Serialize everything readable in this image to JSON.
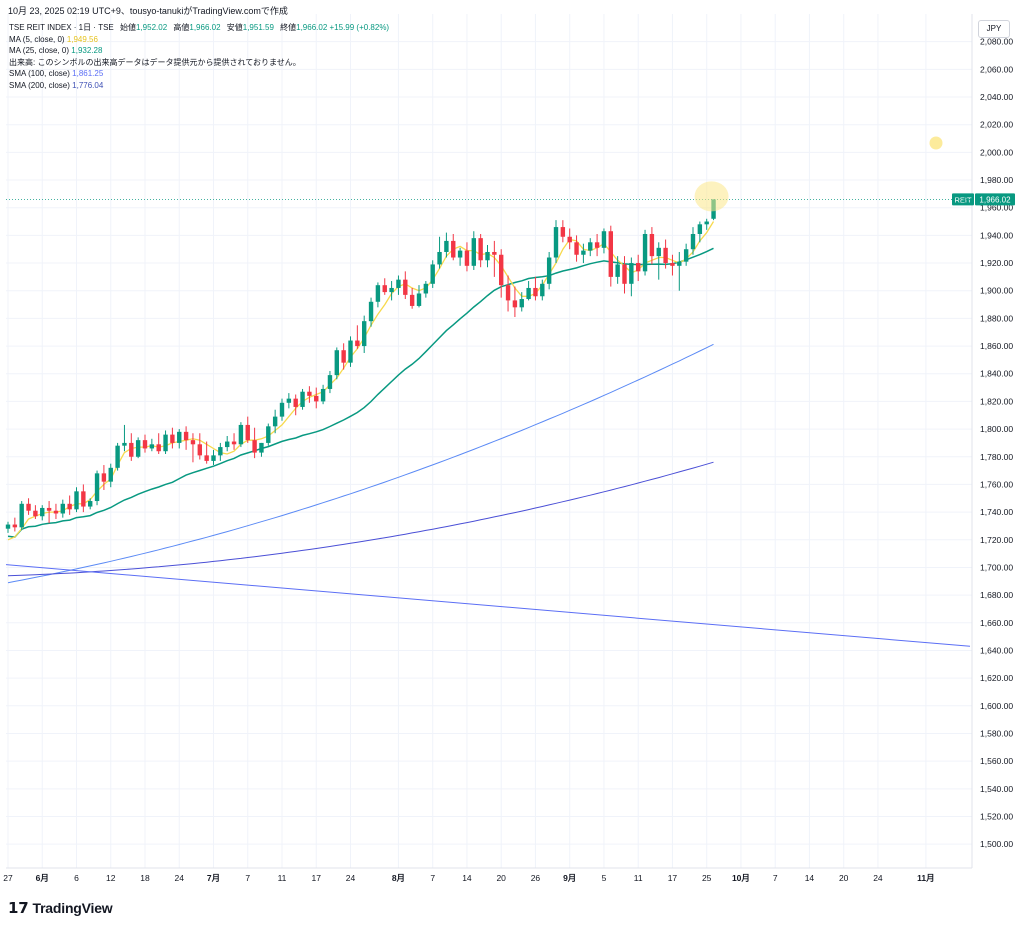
{
  "header": {
    "text": "10月 23, 2025 02:19 UTC+9、tousyo-tanukiがTradingView.comで作成"
  },
  "legend": {
    "symbol": "TSE REIT INDEX · 1日 · TSE",
    "ohlc": {
      "open_label": "始値",
      "open": "1,952.02",
      "high_label": "高値",
      "high": "1,966.02",
      "low_label": "安値",
      "low": "1,951.59",
      "close_label": "終値",
      "close": "1,966.02",
      "change": "+15.99 (+0.82%)"
    },
    "indicators": [
      {
        "label": "MA (5, close, 0)",
        "value": "1,949.56",
        "color": "#f7d94c"
      },
      {
        "label": "MA (25, close, 0)",
        "value": "1,932.28",
        "color": "#089981"
      },
      {
        "label": "出来高: このシンボルの出来高データはデータ提供元から提供されておりません。",
        "value": "",
        "color": "#131722"
      },
      {
        "label": "SMA (100, close)",
        "value": "1,861.25",
        "color": "#5b6ef5"
      },
      {
        "label": "SMA (200, close)",
        "value": "1,776.04",
        "color": "#3f51b5"
      }
    ]
  },
  "currency_button": "JPY",
  "price_tag": {
    "symbol": "REIT",
    "value": "1,966.02",
    "color": "#089981"
  },
  "brand": {
    "name": "TradingView",
    "mark": "17"
  },
  "colors": {
    "up": "#089981",
    "down": "#f23645",
    "ma5": "#f7d94c",
    "ma25": "#089981",
    "sma100": "#5b8af5",
    "sma200": "#4a4fd6",
    "trend": "#5b6ef5",
    "highlight": "#fbe88a"
  },
  "chart_data": {
    "type": "candlestick",
    "y_axis": {
      "min": 1490,
      "max": 2100,
      "ticks": [
        "2,080.00",
        "2,060.00",
        "2,040.00",
        "2,020.00",
        "2,000.00",
        "1,980.00",
        "1,960.00",
        "1,940.00",
        "1,920.00",
        "1,900.00",
        "1,880.00",
        "1,860.00",
        "1,840.00",
        "1,820.00",
        "1,800.00",
        "1,780.00",
        "1,760.00",
        "1,740.00",
        "1,720.00",
        "1,700.00",
        "1,680.00",
        "1,660.00",
        "1,640.00",
        "1,620.00",
        "1,600.00",
        "1,580.00",
        "1,560.00",
        "1,540.00",
        "1,520.00",
        "1,500.00"
      ]
    },
    "x_axis": {
      "ticks": [
        {
          "label": "27",
          "bar": 0
        },
        {
          "label": "6月",
          "bar": 5
        },
        {
          "label": "6",
          "bar": 10
        },
        {
          "label": "12",
          "bar": 15
        },
        {
          "label": "18",
          "bar": 20
        },
        {
          "label": "24",
          "bar": 25
        },
        {
          "label": "7月",
          "bar": 30
        },
        {
          "label": "7",
          "bar": 35
        },
        {
          "label": "11",
          "bar": 40
        },
        {
          "label": "17",
          "bar": 45
        },
        {
          "label": "24",
          "bar": 50
        },
        {
          "label": "8月",
          "bar": 57
        },
        {
          "label": "7",
          "bar": 62
        },
        {
          "label": "14",
          "bar": 67
        },
        {
          "label": "20",
          "bar": 72
        },
        {
          "label": "26",
          "bar": 77
        },
        {
          "label": "9月",
          "bar": 82
        },
        {
          "label": "5",
          "bar": 87
        },
        {
          "label": "11",
          "bar": 92
        },
        {
          "label": "17",
          "bar": 97
        },
        {
          "label": "25",
          "bar": 102
        },
        {
          "label": "10月",
          "bar": 107
        },
        {
          "label": "7",
          "bar": 112
        },
        {
          "label": "14",
          "bar": 117
        },
        {
          "label": "20",
          "bar": 122
        },
        {
          "label": "24",
          "bar": 127
        },
        {
          "label": "11月",
          "bar": 134
        }
      ]
    },
    "candles": [
      [
        1728,
        1733,
        1725,
        1731
      ],
      [
        1731,
        1736,
        1726,
        1729
      ],
      [
        1729,
        1748,
        1727,
        1746
      ],
      [
        1746,
        1750,
        1738,
        1741
      ],
      [
        1741,
        1745,
        1735,
        1737
      ],
      [
        1737,
        1745,
        1734,
        1743
      ],
      [
        1743,
        1748,
        1732,
        1741
      ],
      [
        1741,
        1746,
        1735,
        1739
      ],
      [
        1739,
        1749,
        1736,
        1746
      ],
      [
        1746,
        1752,
        1738,
        1742
      ],
      [
        1742,
        1758,
        1740,
        1755
      ],
      [
        1755,
        1760,
        1740,
        1744
      ],
      [
        1744,
        1750,
        1742,
        1748
      ],
      [
        1748,
        1770,
        1745,
        1768
      ],
      [
        1768,
        1774,
        1756,
        1762
      ],
      [
        1762,
        1775,
        1758,
        1772
      ],
      [
        1772,
        1790,
        1770,
        1788
      ],
      [
        1788,
        1803,
        1784,
        1790
      ],
      [
        1790,
        1797,
        1777,
        1780
      ],
      [
        1780,
        1794,
        1779,
        1792
      ],
      [
        1792,
        1796,
        1783,
        1786
      ],
      [
        1786,
        1793,
        1784,
        1789
      ],
      [
        1789,
        1797,
        1782,
        1784
      ],
      [
        1784,
        1799,
        1782,
        1796
      ],
      [
        1796,
        1801,
        1786,
        1790
      ],
      [
        1790,
        1800,
        1786,
        1798
      ],
      [
        1798,
        1802,
        1785,
        1792
      ],
      [
        1792,
        1797,
        1776,
        1789
      ],
      [
        1789,
        1797,
        1778,
        1781
      ],
      [
        1781,
        1791,
        1775,
        1777
      ],
      [
        1777,
        1785,
        1774,
        1781
      ],
      [
        1781,
        1790,
        1777,
        1787
      ],
      [
        1787,
        1795,
        1784,
        1791
      ],
      [
        1791,
        1797,
        1785,
        1789
      ],
      [
        1789,
        1805,
        1787,
        1803
      ],
      [
        1803,
        1809,
        1790,
        1792
      ],
      [
        1792,
        1801,
        1779,
        1783
      ],
      [
        1783,
        1790,
        1780,
        1790
      ],
      [
        1790,
        1804,
        1788,
        1802
      ],
      [
        1802,
        1814,
        1797,
        1809
      ],
      [
        1809,
        1822,
        1806,
        1819
      ],
      [
        1819,
        1826,
        1815,
        1822
      ],
      [
        1822,
        1825,
        1810,
        1816
      ],
      [
        1816,
        1829,
        1814,
        1827
      ],
      [
        1827,
        1831,
        1819,
        1824
      ],
      [
        1824,
        1830,
        1815,
        1820
      ],
      [
        1820,
        1832,
        1818,
        1829
      ],
      [
        1829,
        1842,
        1826,
        1839
      ],
      [
        1839,
        1859,
        1836,
        1857
      ],
      [
        1857,
        1862,
        1843,
        1848
      ],
      [
        1848,
        1867,
        1845,
        1864
      ],
      [
        1864,
        1875,
        1858,
        1860
      ],
      [
        1860,
        1882,
        1855,
        1878
      ],
      [
        1878,
        1895,
        1874,
        1892
      ],
      [
        1892,
        1906,
        1888,
        1904
      ],
      [
        1904,
        1909,
        1897,
        1899
      ],
      [
        1899,
        1907,
        1893,
        1902
      ],
      [
        1902,
        1911,
        1897,
        1908
      ],
      [
        1908,
        1914,
        1894,
        1897
      ],
      [
        1897,
        1902,
        1887,
        1889
      ],
      [
        1889,
        1904,
        1888,
        1898
      ],
      [
        1898,
        1907,
        1895,
        1905
      ],
      [
        1905,
        1922,
        1902,
        1919
      ],
      [
        1919,
        1939,
        1916,
        1928
      ],
      [
        1928,
        1942,
        1924,
        1936
      ],
      [
        1936,
        1941,
        1922,
        1924
      ],
      [
        1924,
        1931,
        1918,
        1929
      ],
      [
        1929,
        1935,
        1914,
        1918
      ],
      [
        1918,
        1943,
        1915,
        1938
      ],
      [
        1938,
        1941,
        1917,
        1922
      ],
      [
        1922,
        1933,
        1917,
        1928
      ],
      [
        1928,
        1936,
        1910,
        1926
      ],
      [
        1926,
        1930,
        1895,
        1904
      ],
      [
        1904,
        1911,
        1885,
        1893
      ],
      [
        1893,
        1903,
        1881,
        1888
      ],
      [
        1888,
        1899,
        1885,
        1894
      ],
      [
        1894,
        1907,
        1893,
        1902
      ],
      [
        1902,
        1910,
        1893,
        1896
      ],
      [
        1896,
        1908,
        1893,
        1905
      ],
      [
        1905,
        1928,
        1901,
        1924
      ],
      [
        1924,
        1951,
        1920,
        1946
      ],
      [
        1946,
        1951,
        1935,
        1939
      ],
      [
        1939,
        1945,
        1930,
        1935
      ],
      [
        1935,
        1940,
        1921,
        1926
      ],
      [
        1926,
        1934,
        1920,
        1929
      ],
      [
        1929,
        1938,
        1925,
        1935
      ],
      [
        1935,
        1941,
        1925,
        1931
      ],
      [
        1931,
        1945,
        1927,
        1943
      ],
      [
        1943,
        1947,
        1903,
        1910
      ],
      [
        1910,
        1925,
        1905,
        1919
      ],
      [
        1919,
        1925,
        1898,
        1905
      ],
      [
        1905,
        1924,
        1896,
        1920
      ],
      [
        1920,
        1926,
        1907,
        1914
      ],
      [
        1914,
        1944,
        1911,
        1941
      ],
      [
        1941,
        1946,
        1919,
        1925
      ],
      [
        1925,
        1935,
        1908,
        1931
      ],
      [
        1931,
        1937,
        1916,
        1920
      ],
      [
        1920,
        1926,
        1911,
        1918
      ],
      [
        1918,
        1928,
        1900,
        1921
      ],
      [
        1921,
        1934,
        1918,
        1930
      ],
      [
        1930,
        1946,
        1926,
        1941
      ],
      [
        1941,
        1950,
        1935,
        1948
      ],
      [
        1948,
        1952,
        1944,
        1950
      ],
      [
        1952,
        1966,
        1951,
        1966
      ]
    ],
    "ma5": [
      1720,
      1722,
      1728,
      1735,
      1737,
      1739,
      1740,
      1740,
      1741,
      1744,
      1746,
      1746,
      1749,
      1755,
      1760,
      1764,
      1774,
      1783,
      1786,
      1787,
      1787,
      1788,
      1787,
      1788,
      1790,
      1791,
      1792,
      1793,
      1792,
      1789,
      1786,
      1783,
      1782,
      1784,
      1789,
      1792,
      1792,
      1793,
      1795,
      1799,
      1803,
      1809,
      1815,
      1820,
      1823,
      1825,
      1827,
      1832,
      1837,
      1844,
      1852,
      1858,
      1866,
      1875,
      1883,
      1890,
      1898,
      1903,
      1905,
      1902,
      1900,
      1902,
      1908,
      1916,
      1925,
      1930,
      1932,
      1929,
      1929,
      1926,
      1927,
      1924,
      1918,
      1910,
      1902,
      1896,
      1896,
      1898,
      1904,
      1912,
      1920,
      1930,
      1937,
      1936,
      1930,
      1929,
      1931,
      1934,
      1928,
      1922,
      1918,
      1913,
      1915,
      1920,
      1922,
      1924,
      1924,
      1922,
      1920,
      1923,
      1928,
      1936,
      1942,
      1950
    ]
  }
}
